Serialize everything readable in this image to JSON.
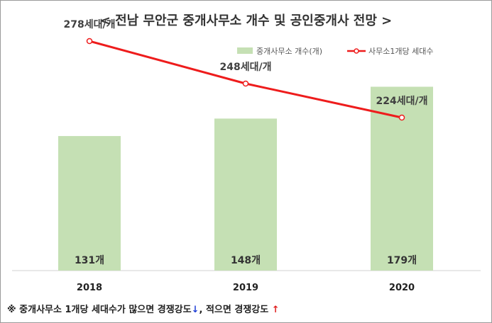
{
  "title": "< 전남 무안군 중개사무소 개수 및 공인중개사 전망 >",
  "chart_data": {
    "type": "bar+line",
    "categories": [
      "2018",
      "2019",
      "2020"
    ],
    "series": [
      {
        "name": "중개사무소 개수(개)",
        "type": "bar",
        "values": [
          131,
          148,
          179
        ],
        "labels": [
          "131개",
          "148개",
          "179개"
        ],
        "color": "#c5e0b4"
      },
      {
        "name": "사무소1개당 세대수",
        "type": "line",
        "values": [
          278,
          248,
          224
        ],
        "labels": [
          "278세대/개",
          "248세대/개",
          "224세대/개"
        ],
        "color": "#ee1c1c"
      }
    ],
    "legend_position": "top-right",
    "grid": false
  },
  "footnote": {
    "text_before": "※ 중개사무소 1개당 세대수가 많으면 경쟁강도",
    "arrow_down": "↓",
    "text_middle": ", 적으면 경쟁강도 ",
    "arrow_up": "↑"
  }
}
